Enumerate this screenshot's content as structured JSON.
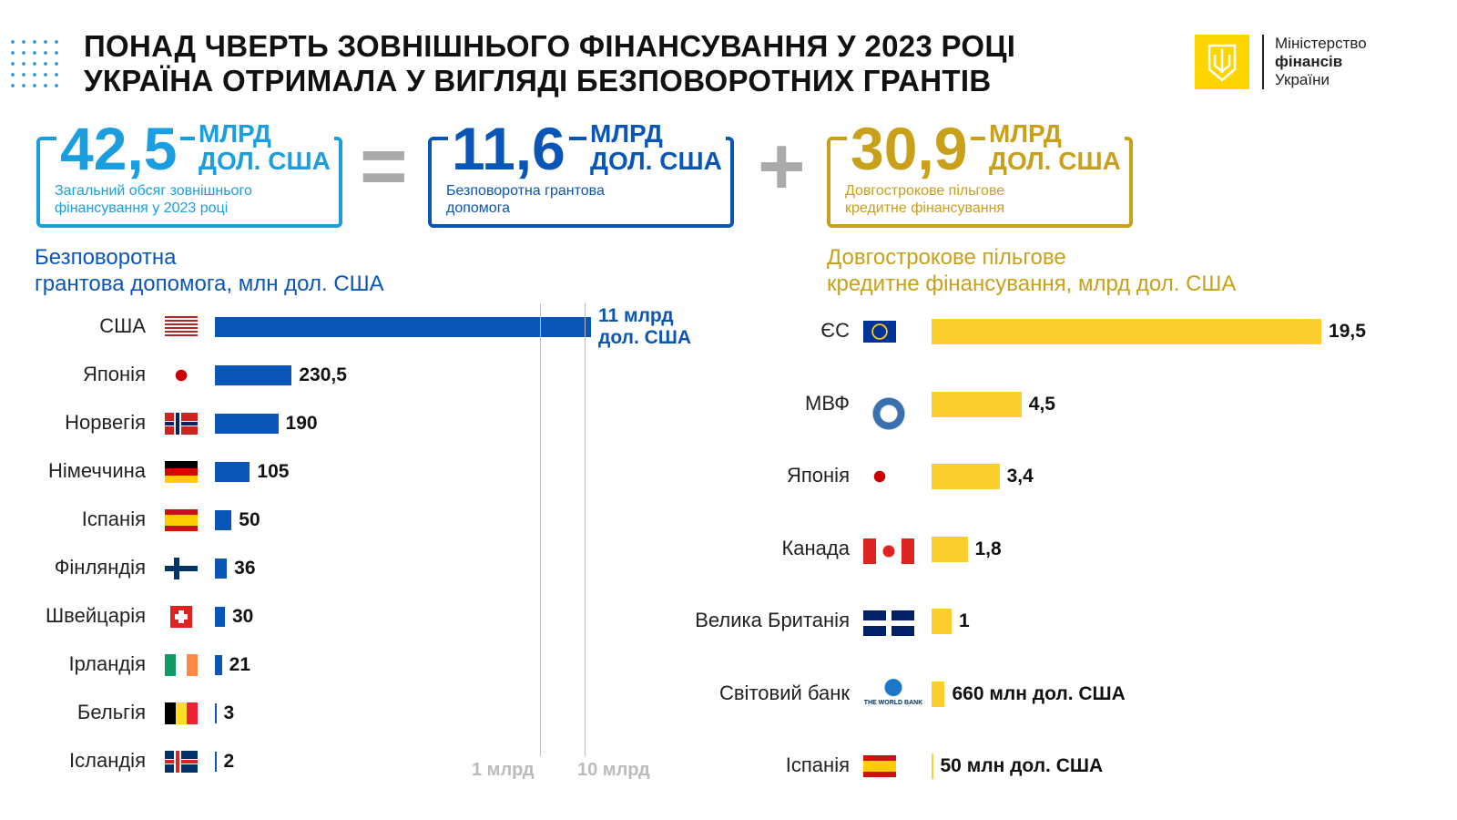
{
  "title": [
    "ПОНАД ЧВЕРТЬ ЗОВНІШНЬОГО ФІНАНСУВАННЯ У 2023 РОЦІ",
    "УКРАЇНА ОТРИМАЛА У ВИГЛЯДІ БЕЗПОВОРОТНИХ ГРАНТІВ"
  ],
  "logo": {
    "line1": "Міністерство",
    "line2": "фінансів",
    "line3": "України"
  },
  "summary": [
    {
      "value": "42,5",
      "unit1": "МЛРД",
      "unit2": "ДОЛ. США",
      "desc1": "Загальний обсяг зовнішнього",
      "desc2": "фінансування у 2023 році",
      "color": "#1a9ee0"
    },
    {
      "operator": "="
    },
    {
      "value": "11,6",
      "unit1": "МЛРД",
      "unit2": "ДОЛ. США",
      "desc1": "Безповоротна грантова",
      "desc2": "допомога",
      "color": "#0a56b8"
    },
    {
      "operator": "+"
    },
    {
      "value": "30,9",
      "unit1": "МЛРД",
      "unit2": "ДОЛ. США",
      "desc1": "Довгострокове пільгове",
      "desc2": "кредитне фінансування",
      "color": "#c8a01a"
    }
  ],
  "chart_data": [
    {
      "type": "bar",
      "orientation": "horizontal",
      "title": [
        "Безповоротна",
        "грантова допомога, млн дол. США"
      ],
      "color": "#0a56b8",
      "categories": [
        "США",
        "Японія",
        "Норвегія",
        "Німеччина",
        "Іспанія",
        "Фінляндія",
        "Швейцарія",
        "Ірландія",
        "Бельгія",
        "Ісландія"
      ],
      "values": [
        11000,
        230.5,
        190,
        105,
        50,
        36,
        30,
        21,
        3,
        2
      ],
      "labels": [
        "11 млрд дол. США",
        "230,5",
        "190",
        "105",
        "50",
        "36",
        "30",
        "21",
        "3",
        "2"
      ],
      "axis_ticks": [
        "1 млрд",
        "10 млрд"
      ],
      "scale": "broken"
    },
    {
      "type": "bar",
      "orientation": "horizontal",
      "title": [
        "Довгострокове пільгове",
        "кредитне фінансування, млрд дол. США"
      ],
      "color": "#fccf2e",
      "categories": [
        "ЄС",
        "МВФ",
        "Японія",
        "Канада",
        "Велика Британія",
        "Світовий банк",
        "Іспанія"
      ],
      "values": [
        19.5,
        4.5,
        3.4,
        1.8,
        1,
        0.66,
        0.05
      ],
      "labels": [
        "19,5",
        "4,5",
        "3,4",
        "1,8",
        "1",
        "660 млн дол. США",
        "50 млн дол. США"
      ]
    }
  ]
}
